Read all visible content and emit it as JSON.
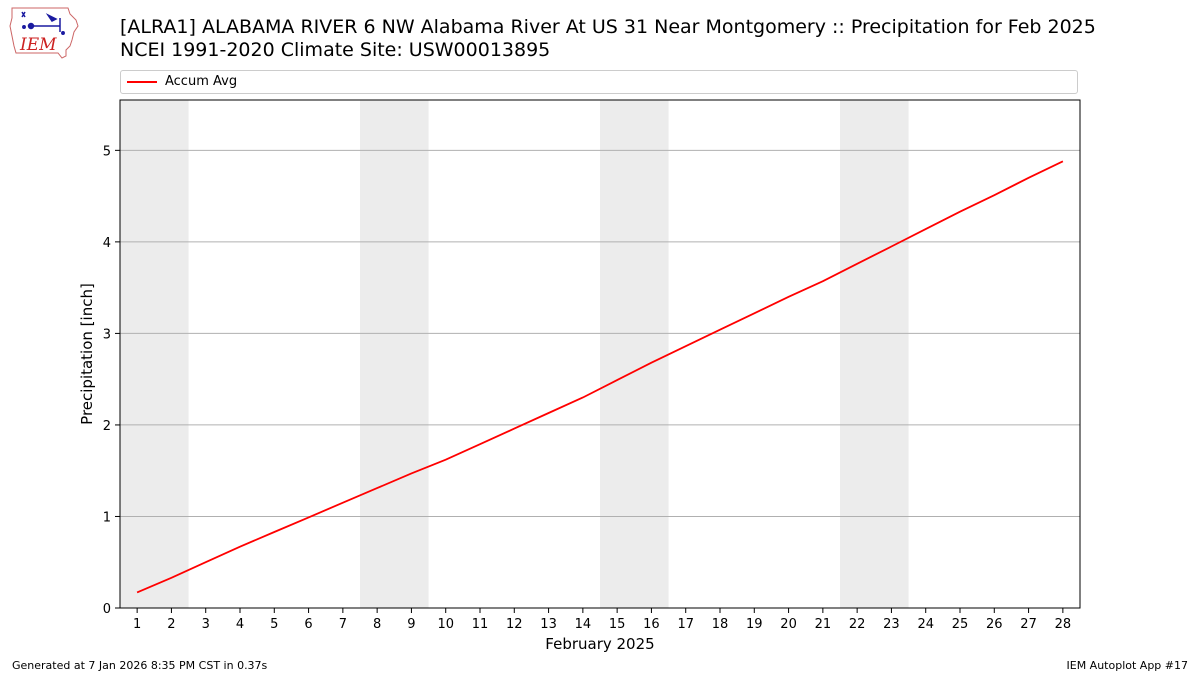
{
  "header": {
    "title_line1": "[ALRA1] ALABAMA RIVER 6 NW Alabama River At US 31 Near Montgomery :: Precipitation for Feb 2025",
    "title_line2": "NCEI 1991-2020 Climate Site: USW00013895"
  },
  "logo": {
    "text": "IEM",
    "icon": "iem-iowa-map-logo"
  },
  "footer": {
    "generated": "Generated at 7 Jan 2026 8:35 PM CST in 0.37s",
    "app": "IEM Autoplot App #17"
  },
  "colors": {
    "series": "#ff0000",
    "weekend_band": "#ececec",
    "grid": "#b0b0b0"
  },
  "chart_data": {
    "type": "line",
    "xlabel": "February 2025",
    "ylabel": "Precipitation [inch]",
    "xlim": [
      0.5,
      28.5
    ],
    "ylim": [
      0,
      5.55
    ],
    "yticks": [
      0,
      1,
      2,
      3,
      4,
      5
    ],
    "x": [
      1,
      2,
      3,
      4,
      5,
      6,
      7,
      8,
      9,
      10,
      11,
      12,
      13,
      14,
      15,
      16,
      17,
      18,
      19,
      20,
      21,
      22,
      23,
      24,
      25,
      26,
      27,
      28
    ],
    "series": [
      {
        "name": "Accum Avg",
        "color": "#ff0000",
        "values": [
          0.17,
          0.33,
          0.5,
          0.67,
          0.83,
          0.99,
          1.15,
          1.31,
          1.47,
          1.62,
          1.79,
          1.96,
          2.13,
          2.3,
          2.49,
          2.68,
          2.86,
          3.04,
          3.22,
          3.4,
          3.57,
          3.76,
          3.95,
          4.14,
          4.33,
          4.51,
          4.7,
          4.88
        ]
      }
    ],
    "weekend_bands": [
      [
        0.5,
        2.5
      ],
      [
        7.5,
        9.5
      ],
      [
        14.5,
        16.5
      ],
      [
        21.5,
        23.5
      ]
    ],
    "grid": "y-major",
    "legend": "top"
  }
}
